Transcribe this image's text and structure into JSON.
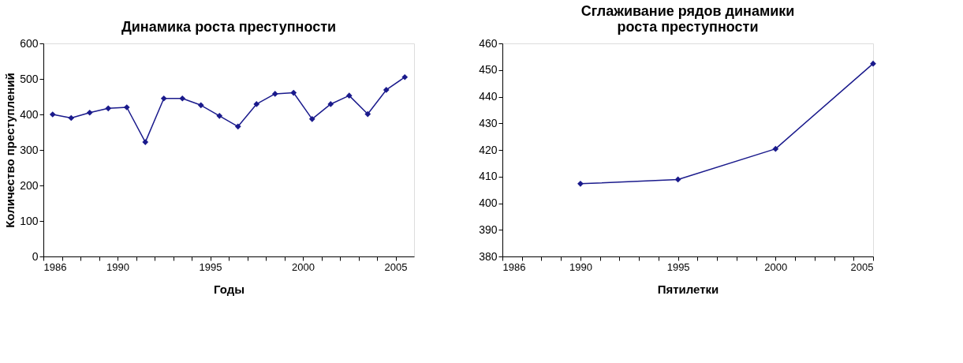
{
  "chart_data": [
    {
      "type": "line",
      "title": "Динамика роста преступности",
      "xlabel": "Годы",
      "ylabel": "Количество преступлений",
      "x": [
        1986.5,
        1987.5,
        1988.5,
        1989.5,
        1990.5,
        1991.5,
        1992.5,
        1993.5,
        1994.5,
        1995.5,
        1996.5,
        1997.5,
        1998.5,
        1999.5,
        2000.5,
        2001.5,
        2002.5,
        2003.5,
        2004.5,
        2005.5
      ],
      "series": [
        {
          "color": "#1a1a8c",
          "values": [
            400,
            390,
            405,
            417,
            420,
            322,
            445,
            445,
            426,
            396,
            366,
            429,
            458,
            461,
            387,
            429,
            453,
            401,
            469,
            505
          ]
        }
      ],
      "xlim": [
        1986,
        2006
      ],
      "xticks": [
        1986,
        {
          "value": 1987,
          "label": null
        },
        {
          "value": 1988,
          "label": null
        },
        {
          "value": 1989,
          "label": null
        },
        1990,
        {
          "value": 1991,
          "label": null
        },
        {
          "value": 1992,
          "label": null
        },
        {
          "value": 1993,
          "label": null
        },
        {
          "value": 1994,
          "label": null
        },
        1995,
        {
          "value": 1996,
          "label": null
        },
        {
          "value": 1997,
          "label": null
        },
        {
          "value": 1998,
          "label": null
        },
        {
          "value": 1999,
          "label": null
        },
        2000,
        {
          "value": 2001,
          "label": null
        },
        {
          "value": 2002,
          "label": null
        },
        {
          "value": 2003,
          "label": null
        },
        {
          "value": 2004,
          "label": null
        },
        2005
      ],
      "ylim": [
        0,
        600
      ],
      "yticks": [
        0,
        100,
        200,
        300,
        400,
        500,
        600
      ],
      "grid": false,
      "marker": "diamond",
      "line_style": "solid"
    },
    {
      "type": "line",
      "title": "Сглаживание рядов динамики\nроста преступности",
      "xlabel": "Пятилетки",
      "x": [
        1990,
        1995,
        2000,
        2005
      ],
      "series": [
        {
          "color": "#1a1a8c",
          "values": [
            407.3,
            408.9,
            420.4,
            452.4
          ]
        }
      ],
      "xlim": [
        1986,
        2005
      ],
      "xticks": [
        1986,
        {
          "value": 1987,
          "label": null
        },
        {
          "value": 1988,
          "label": null
        },
        {
          "value": 1989,
          "label": null
        },
        1990,
        {
          "value": 1991,
          "label": null
        },
        {
          "value": 1992,
          "label": null
        },
        {
          "value": 1993,
          "label": null
        },
        {
          "value": 1994,
          "label": null
        },
        1995,
        {
          "value": 1996,
          "label": null
        },
        {
          "value": 1997,
          "label": null
        },
        {
          "value": 1998,
          "label": null
        },
        {
          "value": 1999,
          "label": null
        },
        2000,
        {
          "value": 2001,
          "label": null
        },
        {
          "value": 2002,
          "label": null
        },
        {
          "value": 2003,
          "label": null
        },
        {
          "value": 2004,
          "label": null
        },
        2005
      ],
      "ylim": [
        380,
        460
      ],
      "yticks": [
        380,
        390,
        400,
        410,
        420,
        430,
        440,
        450,
        460
      ],
      "grid": false,
      "marker": "diamond",
      "line_style": "solid"
    }
  ]
}
